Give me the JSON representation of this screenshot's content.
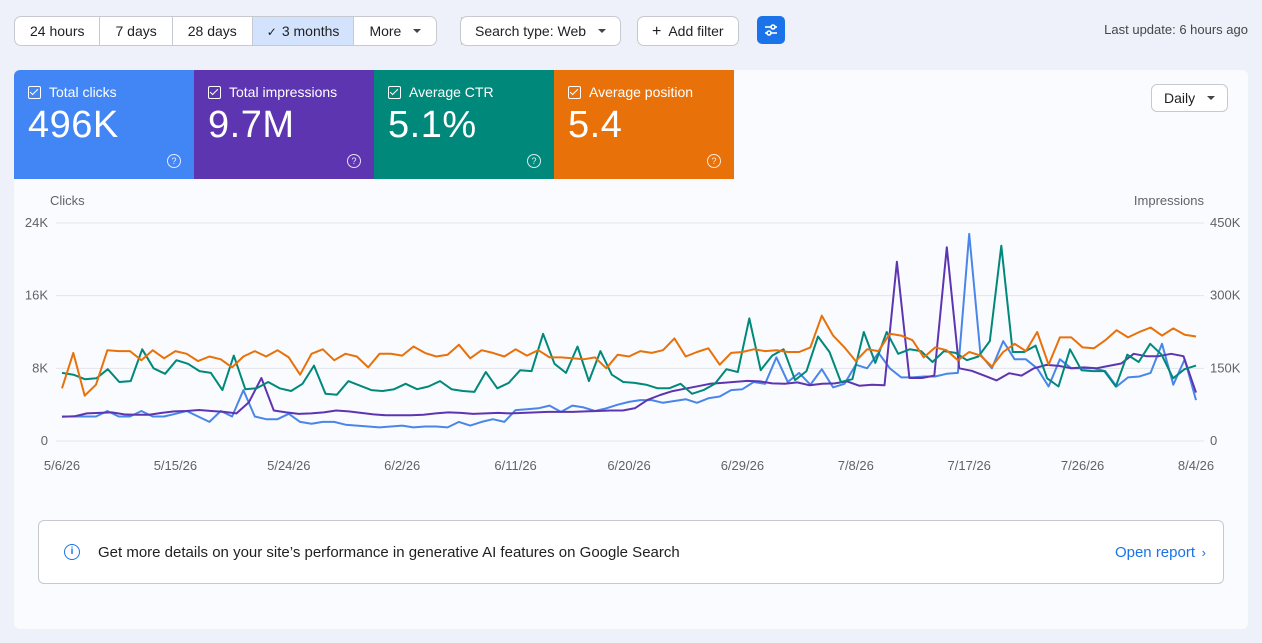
{
  "toolbar": {
    "ranges": [
      "24 hours",
      "7 days",
      "28 days",
      "3 months",
      "More"
    ],
    "selected_range_index": 3,
    "search_type_label": "Search type: Web",
    "add_filter_label": "Add filter",
    "last_update": "Last update: 6 hours ago"
  },
  "metrics": [
    {
      "label": "Total clicks",
      "value": "496K",
      "color": "#4285f4",
      "checked": true
    },
    {
      "label": "Total impressions",
      "value": "9.7M",
      "color": "#5e35b1",
      "checked": true
    },
    {
      "label": "Average CTR",
      "value": "5.1%",
      "color": "#00897b",
      "checked": true
    },
    {
      "label": "Average position",
      "value": "5.4",
      "color": "#e8710a",
      "checked": true
    }
  ],
  "granularity_label": "Daily",
  "chart_data": {
    "type": "line",
    "left_axis_label": "Clicks",
    "right_axis_label": "Impressions",
    "left_ticks": [
      "24K",
      "16K",
      "8K",
      "0"
    ],
    "right_ticks": [
      "450K",
      "300K",
      "150K",
      "0"
    ],
    "left_ylim": [
      0,
      24000
    ],
    "right_ylim": [
      0,
      450000
    ],
    "x_tick_labels": [
      "5/6/26",
      "5/15/26",
      "5/24/26",
      "6/2/26",
      "6/11/26",
      "6/20/26",
      "6/29/26",
      "7/8/26",
      "7/17/26",
      "7/26/26",
      "8/4/26"
    ],
    "series": [
      {
        "name": "Total clicks",
        "color": "#4a86e8",
        "axis": "left",
        "values": [
          2700,
          2700,
          2700,
          2700,
          3300,
          2700,
          2700,
          3300,
          2700,
          2700,
          3000,
          3300,
          2700,
          2100,
          3300,
          2700,
          5600,
          2700,
          2400,
          2400,
          3000,
          2100,
          1900,
          2100,
          2100,
          1800,
          1700,
          1600,
          1500,
          1600,
          1700,
          1500,
          1600,
          1600,
          1500,
          2100,
          1700,
          2100,
          2400,
          2100,
          3400,
          3500,
          3600,
          3900,
          3200,
          3900,
          3700,
          3300,
          3600,
          4000,
          4300,
          4500,
          4500,
          4200,
          4400,
          4600,
          4200,
          4700,
          4900,
          5600,
          5700,
          6500,
          6300,
          9200,
          6500,
          7500,
          6200,
          7900,
          5900,
          6300,
          8400,
          8000,
          9700,
          8000,
          7000,
          7000,
          7100,
          7100,
          7400,
          7500,
          22800,
          9500,
          8000,
          11000,
          9000,
          9000,
          8000,
          6000,
          9000,
          8000,
          8000,
          8000,
          7700,
          6000,
          7000,
          7100,
          7500,
          10700,
          6200,
          9000,
          4500
        ],
        "date_positions": [
          0,
          0.01,
          0.02,
          0.03,
          0.04,
          0.05,
          0.06,
          0.07,
          0.08,
          0.09,
          0.1,
          0.11,
          0.12,
          0.13,
          0.14,
          0.15,
          0.16,
          0.17,
          0.18,
          0.19,
          0.2,
          0.21,
          0.22,
          0.23,
          0.24,
          0.25,
          0.26,
          0.27,
          0.28,
          0.29,
          0.3,
          0.31,
          0.32,
          0.33,
          0.34,
          0.35,
          0.36,
          0.37,
          0.38,
          0.39,
          0.4,
          0.41,
          0.42,
          0.43,
          0.44,
          0.45,
          0.46,
          0.47,
          0.48,
          0.49,
          0.5,
          0.51,
          0.52,
          0.53,
          0.54,
          0.55,
          0.56,
          0.57,
          0.58,
          0.59,
          0.6,
          0.61,
          0.62,
          0.63,
          0.64,
          0.65,
          0.66,
          0.67,
          0.68,
          0.69,
          0.7,
          0.71,
          0.72,
          0.73,
          0.74,
          0.75,
          0.76,
          0.77,
          0.78,
          0.79,
          0.8,
          0.81,
          0.82,
          0.83,
          0.84,
          0.85,
          0.86,
          0.87,
          0.88,
          0.89,
          0.9,
          0.91,
          0.92,
          0.93,
          0.94,
          0.95,
          0.96,
          0.97,
          0.98,
          0.99,
          1
        ]
      },
      {
        "name": "Total impressions",
        "color": "#5e35b1",
        "axis": "right",
        "values": [
          50000,
          51000,
          57000,
          58000,
          59000,
          55000,
          54000,
          54000,
          58000,
          61000,
          62000,
          64000,
          62000,
          60000,
          57000,
          80000,
          130000,
          63000,
          59000,
          56000,
          57000,
          59000,
          63000,
          61000,
          58000,
          55000,
          53000,
          53000,
          53000,
          54000,
          57000,
          59000,
          58000,
          56000,
          57000,
          58000,
          57000,
          58000,
          59000,
          60000,
          60000,
          60000,
          61000,
          62000,
          63000,
          63000,
          68000,
          85000,
          95000,
          103000,
          108000,
          113000,
          118000,
          120000,
          122000,
          124000,
          123000,
          119000,
          118000,
          121000,
          115000,
          118000,
          119000,
          123000,
          114000,
          116000,
          115000,
          370000,
          130000,
          130000,
          135000,
          400000,
          150000,
          145000,
          135000,
          125000,
          140000,
          135000,
          150000,
          157000,
          155000,
          150000,
          152000,
          150000,
          155000,
          160000,
          180000,
          175000,
          175000,
          180000,
          175000,
          100000
        ],
        "date_positions": []
      },
      {
        "name": "Average CTR",
        "color": "#00897b",
        "axis": "left",
        "values": [
          7500,
          7300,
          6800,
          6900,
          7900,
          6500,
          6600,
          10100,
          8000,
          7400,
          8900,
          8500,
          7700,
          7500,
          5600,
          9400,
          5700,
          5800,
          6500,
          5800,
          5500,
          6300,
          8300,
          5200,
          5100,
          6600,
          6100,
          5600,
          5500,
          5700,
          6300,
          5700,
          6000,
          6600,
          5700,
          5500,
          5400,
          7600,
          5800,
          6400,
          7800,
          7700,
          11800,
          8500,
          7500,
          10400,
          6600,
          9900,
          7300,
          6500,
          6400,
          6200,
          5800,
          5800,
          6300,
          5200,
          5600,
          6300,
          7900,
          7600,
          13500,
          7800,
          9400,
          10100,
          6700,
          7700,
          11500,
          9800,
          6500,
          6800,
          12000,
          8600,
          12000,
          9600,
          10100,
          9900,
          8700,
          9900,
          9700,
          8900,
          9300,
          11000,
          21500,
          9800,
          9800,
          10500,
          6900,
          6000,
          10100,
          7800,
          7700,
          7700,
          6000,
          9500,
          8700,
          10700,
          9500,
          6900,
          7900,
          8300
        ],
        "date_positions": []
      },
      {
        "name": "Average position",
        "color": "#e8710a",
        "axis": "left",
        "values": [
          5800,
          9700,
          5000,
          6200,
          10000,
          9900,
          9900,
          8900,
          10000,
          9100,
          9900,
          9600,
          8800,
          9300,
          9000,
          8100,
          9300,
          9900,
          9300,
          10000,
          9200,
          7300,
          9600,
          10100,
          8900,
          9600,
          9300,
          8100,
          9600,
          9600,
          9400,
          10400,
          9700,
          9300,
          9500,
          10600,
          9100,
          10000,
          9700,
          9300,
          10100,
          9400,
          10000,
          9200,
          9200,
          9100,
          9000,
          9200,
          8000,
          9500,
          9300,
          9900,
          9700,
          10000,
          11300,
          9300,
          9800,
          10200,
          8400,
          9700,
          9800,
          10100,
          9900,
          10000,
          9800,
          9800,
          10300,
          13800,
          11600,
          10300,
          8800,
          10100,
          9900,
          11800,
          11600,
          11100,
          9200,
          10300,
          10000,
          8900,
          9800,
          9400,
          8200,
          9800,
          10700,
          9900,
          12000,
          8400,
          11400,
          11400,
          10300,
          10200,
          11100,
          12200,
          11400,
          12000,
          12500,
          11600,
          12400,
          11700,
          11500
        ],
        "date_positions": []
      }
    ]
  },
  "ai_banner": {
    "message": "Get more details on your site’s performance in generative AI features on Google Search",
    "link_label": "Open report"
  }
}
